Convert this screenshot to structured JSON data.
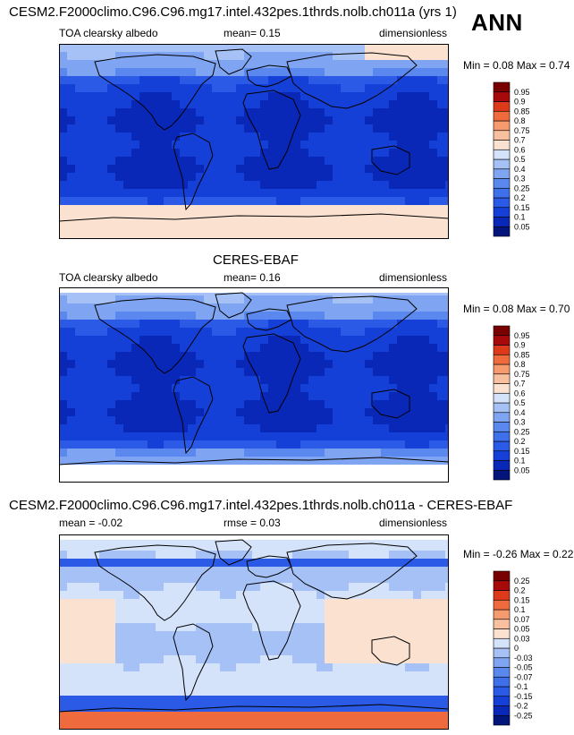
{
  "header": {
    "title": "CESM2.F2000climo.C96.C96.mg17.intel.432pes.1thrds.nolb.ch011a (yrs 1)",
    "season": "ANN"
  },
  "panels": [
    {
      "title": "",
      "left_label": "TOA clearsky albedo",
      "center_label": "mean=   0.15",
      "right_label": "dimensionless",
      "minmax": "Min =   0.08  Max =    0.74"
    },
    {
      "title": "CERES-EBAF",
      "left_label": "TOA clearsky albedo",
      "center_label": "mean=   0.16",
      "right_label": "dimensionless",
      "minmax": "Min =   0.08  Max =    0.70"
    },
    {
      "title": "CESM2.F2000climo.C96.C96.mg17.intel.432pes.1thrds.nolb.ch011a - CERES-EBAF",
      "left_label": "mean =  -0.02",
      "center_label": "rmse =   0.03",
      "right_label": "dimensionless",
      "minmax": "Min =  -0.26  Max =    0.22"
    }
  ],
  "chart_data": [
    {
      "type": "heatmap",
      "title": "",
      "variable": "TOA clearsky albedo",
      "units": "dimensionless",
      "mean": 0.15,
      "min": 0.08,
      "max": 0.74,
      "colorbar_levels": [
        "0.05",
        "0.1",
        "0.15",
        "0.2",
        "0.25",
        "0.3",
        "0.4",
        "0.5",
        "0.6",
        "0.7",
        "0.75",
        "0.8",
        "0.85",
        "0.9",
        "0.95"
      ],
      "colorbar_colors": [
        "#02157a",
        "#0928b8",
        "#1540d8",
        "#2a5ae6",
        "#3e70ea",
        "#5a88ee",
        "#7fa4f2",
        "#a6c1f6",
        "#d5e3fa",
        "#fbe2d0",
        "#f9c0a0",
        "#f69a70",
        "#ef6b3e",
        "#dc3a1a",
        "#a80a0a",
        "#790000"
      ]
    },
    {
      "type": "heatmap",
      "title": "CERES-EBAF",
      "variable": "TOA clearsky albedo",
      "units": "dimensionless",
      "mean": 0.16,
      "min": 0.08,
      "max": 0.7,
      "colorbar_levels": [
        "0.05",
        "0.1",
        "0.15",
        "0.2",
        "0.25",
        "0.3",
        "0.4",
        "0.5",
        "0.6",
        "0.7",
        "0.75",
        "0.8",
        "0.85",
        "0.9",
        "0.95"
      ],
      "colorbar_colors": [
        "#02157a",
        "#0928b8",
        "#1540d8",
        "#2a5ae6",
        "#3e70ea",
        "#5a88ee",
        "#7fa4f2",
        "#a6c1f6",
        "#d5e3fa",
        "#fbe2d0",
        "#f9c0a0",
        "#f69a70",
        "#ef6b3e",
        "#dc3a1a",
        "#a80a0a",
        "#790000"
      ]
    },
    {
      "type": "heatmap",
      "title": "CESM2.F2000climo.C96.C96.mg17.intel.432pes.1thrds.nolb.ch011a - CERES-EBAF",
      "units": "dimensionless",
      "mean": -0.02,
      "rmse": 0.03,
      "min": -0.26,
      "max": 0.22,
      "colorbar_levels": [
        "-0.25",
        "-0.2",
        "-0.15",
        "-0.1",
        "-0.07",
        "-0.05",
        "-0.03",
        "0",
        "0.03",
        "0.05",
        "0.07",
        "0.1",
        "0.15",
        "0.2",
        "0.25"
      ],
      "colorbar_colors": [
        "#02157a",
        "#0928b8",
        "#1540d8",
        "#2a5ae6",
        "#3e70ea",
        "#5a88ee",
        "#7fa4f2",
        "#a6c1f6",
        "#d5e3fa",
        "#fbe2d0",
        "#f9c0a0",
        "#f69a70",
        "#ef6b3e",
        "#dc3a1a",
        "#a80a0a",
        "#790000"
      ]
    }
  ]
}
